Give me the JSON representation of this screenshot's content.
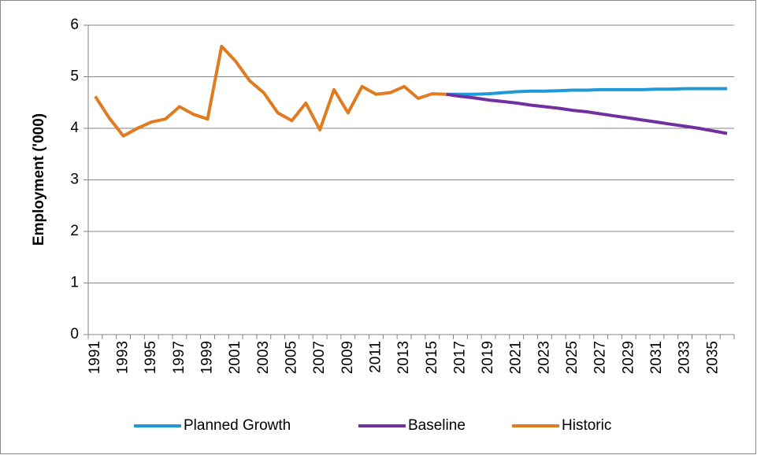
{
  "chart_data": {
    "type": "line",
    "y_label": "Employment ('000)",
    "categories": [
      "1991",
      null,
      "1993",
      null,
      "1995",
      null,
      "1997",
      null,
      "1999",
      null,
      "2001",
      null,
      "2003",
      null,
      "2005",
      null,
      "2007",
      null,
      "2009",
      null,
      "2011",
      null,
      "2013",
      null,
      "2015",
      null,
      "2017",
      null,
      "2019",
      null,
      "2021",
      null,
      "2023",
      null,
      "2025",
      null,
      "2027",
      null,
      "2029",
      null,
      "2031",
      null,
      "2033",
      null,
      "2035",
      null
    ],
    "series": [
      {
        "name": "Planned Growth",
        "color": "#1f9ad6",
        "values": [
          null,
          null,
          null,
          null,
          null,
          null,
          null,
          null,
          null,
          null,
          null,
          null,
          null,
          null,
          null,
          null,
          null,
          null,
          null,
          null,
          null,
          null,
          null,
          null,
          null,
          4.66,
          4.66,
          4.66,
          4.67,
          4.69,
          4.71,
          4.72,
          4.72,
          4.73,
          4.74,
          4.74,
          4.75,
          4.75,
          4.75,
          4.75,
          4.76,
          4.76,
          4.77,
          4.77,
          4.77,
          4.77
        ]
      },
      {
        "name": "Baseline",
        "color": "#7030a0",
        "values": [
          null,
          null,
          null,
          null,
          null,
          null,
          null,
          null,
          null,
          null,
          null,
          null,
          null,
          null,
          null,
          null,
          null,
          null,
          null,
          null,
          null,
          null,
          null,
          null,
          null,
          4.66,
          4.62,
          4.59,
          4.55,
          4.52,
          4.49,
          4.45,
          4.42,
          4.39,
          4.35,
          4.32,
          4.28,
          4.24,
          4.2,
          4.16,
          4.12,
          4.08,
          4.04,
          4.0,
          3.95,
          3.9
        ]
      },
      {
        "name": "Historic",
        "color": "#e07b20",
        "values": [
          4.62,
          4.2,
          3.85,
          4.0,
          4.12,
          4.18,
          4.42,
          4.27,
          4.18,
          5.59,
          5.3,
          4.92,
          4.69,
          4.3,
          4.15,
          4.49,
          3.97,
          4.75,
          4.3,
          4.81,
          4.66,
          4.69,
          4.81,
          4.58,
          4.67,
          4.66,
          null,
          null,
          null,
          null,
          null,
          null,
          null,
          null,
          null,
          null,
          null,
          null,
          null,
          null,
          null,
          null,
          null,
          null,
          null,
          null
        ]
      }
    ],
    "ylim": [
      0,
      6
    ],
    "yticks": [
      0,
      1,
      2,
      3,
      4,
      5,
      6
    ],
    "grid": true,
    "legend": "bottom"
  }
}
